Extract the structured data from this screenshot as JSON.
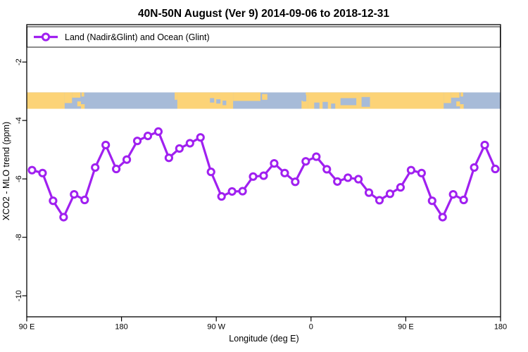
{
  "title": "40N-50N August (Ver 9)   2014-09-06 to 2018-12-31",
  "legend": {
    "label": "Land (Nadir&Glint) and Ocean (Glint)",
    "marker": "open-circle"
  },
  "colors": {
    "series": "#A020F0",
    "marker_fill": "#FFFFFF",
    "land": "#FCD377",
    "ocean": "#A7BBD8",
    "axis": "#000000"
  },
  "chart_data": {
    "type": "line",
    "title": "40N-50N August (Ver 9)   2014-09-06 to 2018-12-31",
    "xlabel": "Longitude (deg E)",
    "ylabel": "XCO2 - MLO trend (ppm)",
    "xlim": [
      90,
      540
    ],
    "ylim": [
      -10.72,
      -0.72
    ],
    "grid": false,
    "legend_position": "top-left-full-width",
    "series_name": "Land (Nadir&Glint) and Ocean (Glint)",
    "marker": "open-circle",
    "x_unit": "degrees east (unwrapped, 90E eastward through 180, 90W, 0, 90E to 180)",
    "x": [
      95,
      105,
      115,
      125,
      135,
      145,
      155,
      165,
      175,
      185,
      195,
      205,
      215,
      225,
      235,
      245,
      255,
      265,
      275,
      285,
      295,
      305,
      315,
      325,
      335,
      345,
      355,
      365,
      375,
      385,
      395,
      405,
      415,
      425,
      435,
      445,
      455,
      465,
      475,
      485,
      495,
      505,
      515,
      525,
      535
    ],
    "values": [
      -5.7,
      -5.8,
      -6.75,
      -7.31,
      -6.53,
      -6.72,
      -5.61,
      -4.84,
      -5.66,
      -5.34,
      -4.7,
      -4.53,
      -4.38,
      -5.28,
      -4.96,
      -4.78,
      -4.58,
      -5.76,
      -6.6,
      -6.43,
      -6.42,
      -5.92,
      -5.89,
      -5.47,
      -5.8,
      -6.1,
      -5.4,
      -5.24,
      -5.67,
      -6.09,
      -5.96,
      -6.01,
      -6.47,
      -6.73,
      -6.51,
      -6.29,
      -5.7,
      -5.8,
      -6.75,
      -7.31,
      -6.53,
      -6.72,
      -5.61,
      -4.84,
      -5.66
    ],
    "x_ticks": [
      {
        "v": 90,
        "label": "90 E"
      },
      {
        "v": 180,
        "label": "180"
      },
      {
        "v": 270,
        "label": "90 W"
      },
      {
        "v": 360,
        "label": "0"
      },
      {
        "v": 450,
        "label": "90 E"
      },
      {
        "v": 540,
        "label": "180"
      }
    ],
    "y_ticks": [
      {
        "v": -2,
        "label": "-2"
      },
      {
        "v": -4,
        "label": "-4"
      },
      {
        "v": -6,
        "label": "-6"
      },
      {
        "v": -8,
        "label": "-8"
      },
      {
        "v": -10,
        "label": "-10"
      }
    ]
  },
  "map_band": {
    "description": "world-map strip of the 40N-50N latitude band (land=orange, ocean=blue)",
    "top_value": -3.04,
    "bottom_value": -3.6,
    "land_segments": [
      [
        90,
        126,
        0,
        1
      ],
      [
        126,
        133,
        0,
        0.65
      ],
      [
        133,
        141,
        0,
        0.32
      ],
      [
        142,
        144.5,
        0,
        0.25
      ],
      [
        138,
        141.5,
        0.55,
        0.85
      ],
      [
        141.5,
        145,
        0.72,
        1
      ],
      [
        230.5,
        233,
        0,
        0.45
      ],
      [
        233,
        286,
        0,
        1
      ],
      [
        286,
        312,
        0,
        0.52
      ],
      [
        313.5,
        318.5,
        0.1,
        0.45
      ],
      [
        351,
        357,
        0.5,
        1
      ],
      [
        355,
        357,
        0,
        0.5
      ],
      [
        357,
        486,
        0,
        1
      ],
      [
        486,
        493,
        0,
        0.65
      ],
      [
        493,
        501,
        0,
        0.32
      ],
      [
        502,
        504.5,
        0,
        0.25
      ],
      [
        498,
        501.5,
        0.55,
        0.85
      ],
      [
        501.5,
        505,
        0.72,
        1
      ]
    ],
    "ocean_patches": [
      [
        264,
        268,
        0.35,
        0.62
      ],
      [
        270,
        274,
        0.42,
        0.68
      ],
      [
        276,
        279.5,
        0.5,
        0.78
      ],
      [
        352,
        355.5,
        0.15,
        0.55
      ],
      [
        363,
        368,
        0.62,
        1
      ],
      [
        371,
        376,
        0.58,
        1
      ],
      [
        379,
        383,
        0.68,
        1
      ],
      [
        388,
        403,
        0.35,
        0.78
      ],
      [
        408,
        416,
        0.28,
        0.88
      ]
    ]
  }
}
